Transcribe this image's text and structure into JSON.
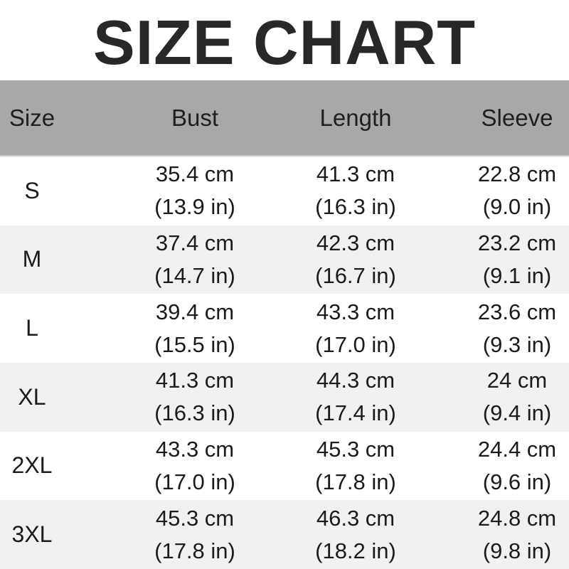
{
  "title": "SIZE CHART",
  "table": {
    "columns": [
      "Size",
      "Bust",
      "Length",
      "Sleeve"
    ],
    "rows": [
      {
        "label": "S",
        "bust": {
          "cm": "35.4 cm",
          "in": "(13.9 in)"
        },
        "length": {
          "cm": "41.3 cm",
          "in": "(16.3 in)"
        },
        "sleeve": {
          "cm": "22.8 cm",
          "in": "(9.0 in)"
        }
      },
      {
        "label": "M",
        "bust": {
          "cm": "37.4 cm",
          "in": "(14.7 in)"
        },
        "length": {
          "cm": "42.3 cm",
          "in": "(16.7 in)"
        },
        "sleeve": {
          "cm": "23.2 cm",
          "in": "(9.1 in)"
        }
      },
      {
        "label": "L",
        "bust": {
          "cm": "39.4 cm",
          "in": "(15.5 in)"
        },
        "length": {
          "cm": "43.3 cm",
          "in": "(17.0 in)"
        },
        "sleeve": {
          "cm": "23.6 cm",
          "in": "(9.3 in)"
        }
      },
      {
        "label": "XL",
        "bust": {
          "cm": "41.3 cm",
          "in": "(16.3 in)"
        },
        "length": {
          "cm": "44.3 cm",
          "in": "(17.4 in)"
        },
        "sleeve": {
          "cm": "24 cm",
          "in": "(9.4 in)"
        }
      },
      {
        "label": "2XL",
        "bust": {
          "cm": "43.3 cm",
          "in": "(17.0 in)"
        },
        "length": {
          "cm": "45.3 cm",
          "in": "(17.8 in)"
        },
        "sleeve": {
          "cm": "24.4 cm",
          "in": "(9.6 in)"
        }
      },
      {
        "label": "3XL",
        "bust": {
          "cm": "45.3 cm",
          "in": "(17.8 in)"
        },
        "length": {
          "cm": "46.3 cm",
          "in": "(18.2 in)"
        },
        "sleeve": {
          "cm": "24.8 cm",
          "in": "(9.8 in)"
        }
      }
    ]
  },
  "colors": {
    "header_bg": "#a8a8a8",
    "zebra_row_bg": "#f1f1f2",
    "row_bg": "#ffffff",
    "text": "#1b1b1b",
    "title_text": "#282828"
  },
  "chart_data": {
    "type": "table",
    "title": "SIZE CHART",
    "columns": [
      "Size",
      "Bust",
      "Length",
      "Sleeve"
    ],
    "units": [
      "",
      "cm (in)",
      "cm (in)",
      "cm (in)"
    ],
    "rows": [
      [
        "S",
        "35.4 cm (13.9 in)",
        "41.3 cm (16.3 in)",
        "22.8 cm (9.0 in)"
      ],
      [
        "M",
        "37.4 cm (14.7 in)",
        "42.3 cm (16.7 in)",
        "23.2 cm (9.1 in)"
      ],
      [
        "L",
        "39.4 cm (15.5 in)",
        "43.3 cm (17.0 in)",
        "23.6 cm (9.3 in)"
      ],
      [
        "XL",
        "41.3 cm (16.3 in)",
        "44.3 cm (17.4 in)",
        "24 cm (9.4 in)"
      ],
      [
        "2XL",
        "43.3 cm (17.0 in)",
        "45.3 cm (17.8 in)",
        "24.4 cm (9.6 in)"
      ],
      [
        "3XL",
        "45.3 cm (17.8 in)",
        "46.3 cm (18.2 in)",
        "24.8 cm (9.8 in)"
      ]
    ],
    "bust_cm": [
      35.4,
      37.4,
      39.4,
      41.3,
      43.3,
      45.3
    ],
    "length_cm": [
      41.3,
      42.3,
      43.3,
      44.3,
      45.3,
      46.3
    ],
    "sleeve_cm": [
      22.8,
      23.2,
      23.6,
      24.0,
      24.4,
      24.8
    ]
  }
}
